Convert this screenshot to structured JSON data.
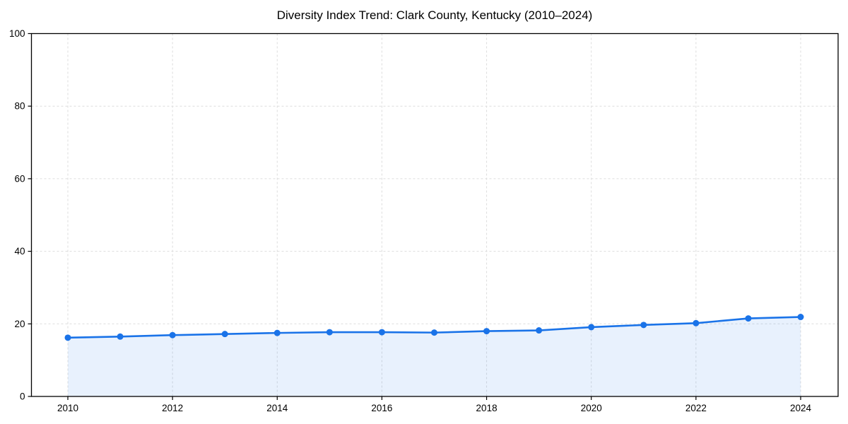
{
  "colors": {
    "line": "#1a73e8",
    "fill_opacity": 0.1,
    "grid": "#dddddd",
    "axis": "#000000",
    "text": "#000000",
    "background": "#ffffff"
  },
  "chart_data": {
    "type": "line",
    "title": "Diversity Index Trend: Clark County, Kentucky (2010–2024)",
    "x": [
      2010,
      2011,
      2012,
      2013,
      2014,
      2015,
      2016,
      2017,
      2018,
      2019,
      2020,
      2021,
      2022,
      2023,
      2024
    ],
    "series": [
      {
        "name": "Diversity Index",
        "values": [
          16.2,
          16.5,
          16.9,
          17.2,
          17.5,
          17.7,
          17.7,
          17.6,
          18.0,
          18.2,
          19.1,
          19.7,
          20.2,
          21.5,
          21.9
        ]
      }
    ],
    "xticks": [
      2010,
      2012,
      2014,
      2016,
      2018,
      2020,
      2022,
      2024
    ],
    "yticks": [
      0,
      20,
      40,
      60,
      80,
      100
    ],
    "ylim": [
      0,
      100
    ],
    "xlabel": "",
    "ylabel": "",
    "grid": true,
    "grid_style": "dashed",
    "legend": "none",
    "markers": true,
    "area_fill": true,
    "plot_border": "full-box"
  }
}
